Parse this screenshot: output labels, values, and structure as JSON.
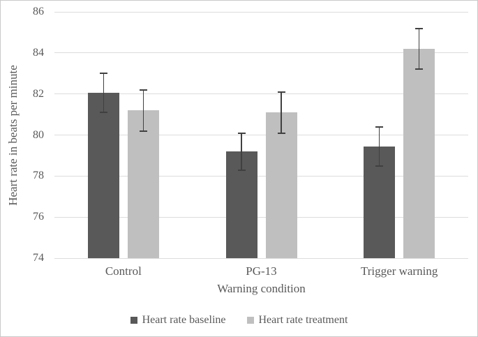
{
  "chart_data": {
    "type": "bar",
    "title": "",
    "xlabel": "Warning condition",
    "ylabel": "Heart rate in beats per minute",
    "categories": [
      "Control",
      "PG-13",
      "Trigger warning"
    ],
    "series": [
      {
        "name": "Heart rate baseline",
        "color": "#595959",
        "values": [
          82.05,
          79.2,
          79.45
        ],
        "errors": [
          0.95,
          0.9,
          0.95
        ]
      },
      {
        "name": "Heart rate treatment",
        "color": "#bfbfbf",
        "values": [
          81.2,
          81.1,
          84.2
        ],
        "errors": [
          1.0,
          1.0,
          1.0
        ]
      }
    ],
    "ylim": [
      74,
      86
    ],
    "ytick_step": 2,
    "ytick_labels": [
      "74",
      "76",
      "78",
      "80",
      "82",
      "84",
      "86"
    ],
    "grid": "horizontal",
    "legend_position": "bottom",
    "colors": {
      "text": "#595959",
      "gridline": "#dcdcdc",
      "error_bar": "#404040",
      "figure_border": "#c9c9c9",
      "background": "#ffffff"
    }
  }
}
